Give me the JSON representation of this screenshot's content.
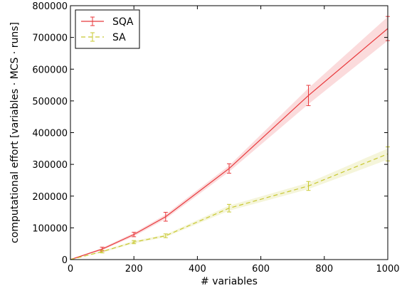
{
  "chart_data": {
    "type": "line",
    "xlabel": "# variables",
    "ylabel": "computational effort [variables · MCS · runs]",
    "xlim": [
      0,
      1000
    ],
    "ylim": [
      0,
      800000
    ],
    "xticks": [
      0,
      200,
      400,
      600,
      800,
      1000
    ],
    "yticks": [
      0,
      100000,
      200000,
      300000,
      400000,
      500000,
      600000,
      700000,
      800000
    ],
    "grid": false,
    "legend_position": "top-left",
    "series": [
      {
        "name": "SQA",
        "color": "#e8393c",
        "line_style": "solid",
        "x": [
          0,
          100,
          200,
          300,
          500,
          750,
          1000
        ],
        "y": [
          0,
          33000,
          79000,
          135000,
          287000,
          517000,
          728000
        ],
        "err": [
          0,
          6000,
          7000,
          14000,
          15000,
          32000,
          38000
        ],
        "band_low": [
          0,
          30000,
          73000,
          128000,
          277000,
          490000,
          690000
        ],
        "band_high": [
          0,
          37000,
          84000,
          142000,
          296000,
          540000,
          765000
        ]
      },
      {
        "name": "SA",
        "color": "#c8c830",
        "line_style": "dashed",
        "x": [
          0,
          100,
          200,
          300,
          500,
          750,
          1000
        ],
        "y": [
          0,
          25000,
          55000,
          75000,
          162000,
          232000,
          333000
        ],
        "err": [
          0,
          4000,
          5000,
          6000,
          12000,
          14000,
          22000
        ],
        "band_low": [
          0,
          22000,
          51000,
          71000,
          154000,
          222000,
          315000
        ],
        "band_high": [
          0,
          28000,
          59000,
          79000,
          170000,
          242000,
          350000
        ]
      }
    ]
  }
}
